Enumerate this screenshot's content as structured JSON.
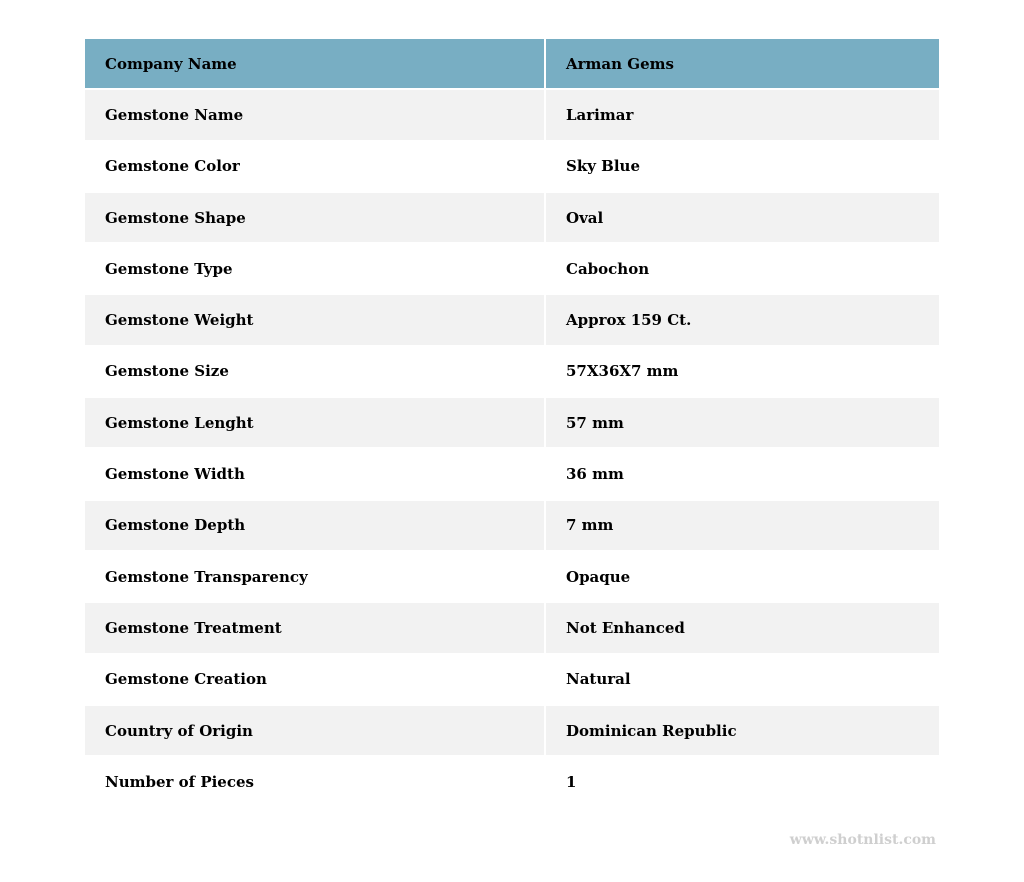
{
  "header": {
    "label": "Company Name",
    "value": "Arman Gems"
  },
  "rows": [
    {
      "label": "Gemstone Name",
      "value": "Larimar"
    },
    {
      "label": "Gemstone Color",
      "value": "Sky Blue"
    },
    {
      "label": "Gemstone Shape",
      "value": "Oval"
    },
    {
      "label": "Gemstone Type",
      "value": "Cabochon"
    },
    {
      "label": "Gemstone Weight",
      "value": "Approx 159 Ct."
    },
    {
      "label": "Gemstone Size",
      "value": "57X36X7 mm"
    },
    {
      "label": "Gemstone Lenght",
      "value": "57 mm"
    },
    {
      "label": "Gemstone Width",
      "value": "36 mm"
    },
    {
      "label": "Gemstone Depth",
      "value": "7 mm"
    },
    {
      "label": "Gemstone Transparency",
      "value": "Opaque"
    },
    {
      "label": "Gemstone Treatment",
      "value": "Not Enhanced"
    },
    {
      "label": "Gemstone Creation",
      "value": "Natural"
    },
    {
      "label": "Country of Origin",
      "value": "Dominican Republic"
    },
    {
      "label": "Number of Pieces",
      "value": "1"
    }
  ],
  "watermark": "www.shotnlist.com",
  "colors": {
    "header_bg": "#78aec3",
    "alt_row_bg": "#f2f2f2"
  }
}
